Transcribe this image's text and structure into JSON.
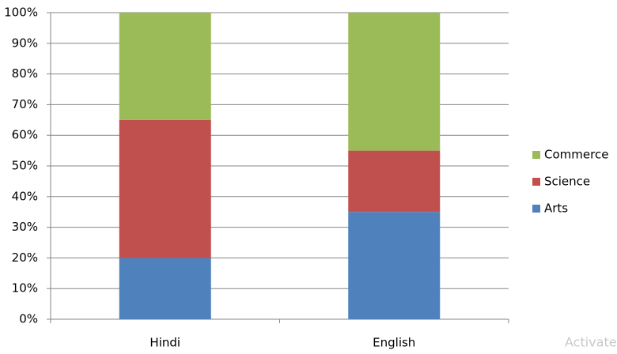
{
  "chart_data": {
    "type": "stacked_bar_100",
    "categories": [
      "Hindi",
      "English"
    ],
    "series": [
      {
        "name": "Arts",
        "color": "#4f81bd",
        "values": [
          20,
          35
        ]
      },
      {
        "name": "Science",
        "color": "#c0504d",
        "values": [
          45,
          20
        ]
      },
      {
        "name": "Commerce",
        "color": "#9bbb59",
        "values": [
          35,
          45
        ]
      }
    ],
    "ylim": [
      0,
      100
    ],
    "yticks": [
      {
        "value": 0,
        "label": "0%"
      },
      {
        "value": 10,
        "label": "10%"
      },
      {
        "value": 20,
        "label": "20%"
      },
      {
        "value": 30,
        "label": "30%"
      },
      {
        "value": 40,
        "label": "40%"
      },
      {
        "value": 50,
        "label": "50%"
      },
      {
        "value": 60,
        "label": "60%"
      },
      {
        "value": 70,
        "label": "70%"
      },
      {
        "value": 80,
        "label": "80%"
      },
      {
        "value": 90,
        "label": "90%"
      },
      {
        "value": 100,
        "label": "100%"
      }
    ],
    "grid": true,
    "legend": "right",
    "watermark": "Activate"
  }
}
